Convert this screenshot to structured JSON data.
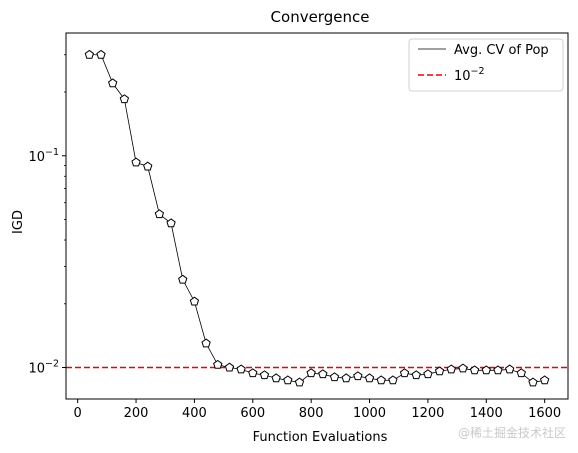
{
  "chart_data": {
    "type": "line",
    "title": "Convergence",
    "xlabel": "Function Evaluations",
    "ylabel": "IGD",
    "yscale": "log",
    "xlim": [
      -40,
      1680
    ],
    "ylim": [
      0.0071,
      0.38
    ],
    "xticks": [
      0,
      200,
      400,
      600,
      800,
      1000,
      1200,
      1400,
      1600
    ],
    "xtick_labels": [
      "0",
      "200",
      "400",
      "600",
      "800",
      "1000",
      "1200",
      "1400",
      "1600"
    ],
    "ytick_major": [
      0.01,
      0.1
    ],
    "ytick_major_labels": [
      {
        "base": "10",
        "exp": "−2"
      },
      {
        "base": "10",
        "exp": "−1"
      }
    ],
    "ytick_minor": [
      0.02,
      0.03,
      0.04,
      0.05,
      0.06,
      0.07,
      0.08,
      0.09,
      0.2,
      0.3
    ],
    "grid": false,
    "legend_position": "top-right",
    "series": [
      {
        "name": "Avg. CV of Pop",
        "color": "#000000",
        "marker": "pentagon",
        "x": [
          40,
          80,
          120,
          160,
          200,
          240,
          280,
          320,
          360,
          400,
          440,
          480,
          520,
          560,
          600,
          640,
          680,
          720,
          760,
          800,
          840,
          880,
          920,
          960,
          1000,
          1040,
          1080,
          1120,
          1160,
          1200,
          1240,
          1280,
          1320,
          1360,
          1400,
          1440,
          1480,
          1520,
          1560,
          1600
        ],
        "y": [
          0.3,
          0.3,
          0.22,
          0.185,
          0.093,
          0.089,
          0.053,
          0.048,
          0.026,
          0.0205,
          0.013,
          0.0103,
          0.01,
          0.0098,
          0.0094,
          0.0092,
          0.0089,
          0.0087,
          0.0085,
          0.0094,
          0.0093,
          0.009,
          0.0089,
          0.0091,
          0.0089,
          0.0087,
          0.0087,
          0.0094,
          0.0092,
          0.0093,
          0.0096,
          0.0098,
          0.0099,
          0.0097,
          0.0097,
          0.0097,
          0.0098,
          0.0094,
          0.0085,
          0.0087
        ]
      }
    ],
    "reference_line": {
      "value": 0.01,
      "color": "#e8000b",
      "style": "dashed",
      "label_base": "10",
      "label_exp": "−2"
    }
  },
  "watermark": "@稀土掘金技术社区"
}
